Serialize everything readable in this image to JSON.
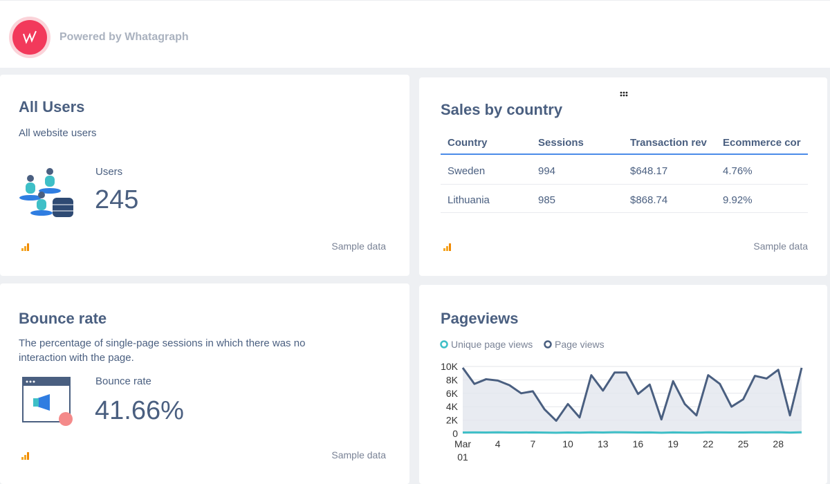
{
  "header": {
    "brand": "Powered by Whatagraph"
  },
  "all_users": {
    "title": "All Users",
    "subtitle": "All website users",
    "metric_label": "Users",
    "metric_value": "245",
    "footer": "Sample data"
  },
  "sales_by_country": {
    "title": "Sales by country",
    "columns": [
      "Country",
      "Sessions",
      "Transaction rev",
      "Ecommerce cor"
    ],
    "rows": [
      [
        "Sweden",
        "994",
        "$648.17",
        "4.76%"
      ],
      [
        "Lithuania",
        "985",
        "$868.74",
        "9.92%"
      ]
    ],
    "footer": "Sample data"
  },
  "bounce_rate": {
    "title": "Bounce rate",
    "subtitle": "The percentage of single-page sessions in which there was no interaction with the page.",
    "metric_label": "Bounce rate",
    "metric_value": "41.66%",
    "footer": "Sample data"
  },
  "chart_data": {
    "type": "line",
    "title": "Pageviews",
    "x": [
      1,
      2,
      3,
      4,
      5,
      6,
      7,
      8,
      9,
      10,
      11,
      12,
      13,
      14,
      15,
      16,
      17,
      18,
      19,
      20,
      21,
      22,
      23,
      24,
      25,
      26,
      27,
      28,
      29,
      30
    ],
    "series": [
      {
        "name": "Unique page views",
        "color": "#3ebfc7",
        "values": [
          150,
          170,
          160,
          180,
          160,
          150,
          170,
          140,
          120,
          160,
          130,
          180,
          160,
          190,
          180,
          150,
          170,
          120,
          170,
          140,
          130,
          180,
          170,
          150,
          160,
          180,
          170,
          190,
          140,
          190
        ]
      },
      {
        "name": "Page views",
        "color": "#4a5f80",
        "values": [
          9800,
          7400,
          8100,
          7900,
          7200,
          6000,
          6300,
          3600,
          1900,
          4400,
          2400,
          8700,
          6400,
          9100,
          9100,
          5900,
          7300,
          2100,
          7800,
          4400,
          2700,
          8700,
          7400,
          4000,
          5100,
          8600,
          8200,
          9500,
          2700,
          9800
        ]
      }
    ],
    "xlim": [
      1,
      30
    ],
    "xticks": [
      {
        "value": 1,
        "label": "Mar\n01"
      },
      4,
      7,
      10,
      13,
      16,
      19,
      22,
      25,
      28
    ],
    "ylim": [
      0,
      10000
    ],
    "yticks": [
      0,
      {
        "value": 2000,
        "label": "2K"
      },
      {
        "value": 4000,
        "label": "4K"
      },
      {
        "value": 6000,
        "label": "6K"
      },
      {
        "value": 8000,
        "label": "8K"
      },
      {
        "value": 10000,
        "label": "10K"
      }
    ],
    "grid": true,
    "legend": "top-left"
  }
}
